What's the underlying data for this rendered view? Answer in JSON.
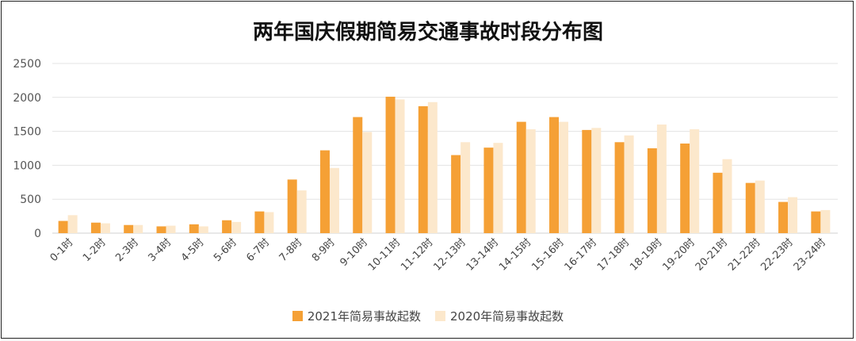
{
  "chart_data": {
    "type": "bar",
    "title": "两年国庆假期简易交通事故时段分布图",
    "categories": [
      "0-1时",
      "1-2时",
      "2-3时",
      "3-4时",
      "4-5时",
      "5-6时",
      "6-7时",
      "7-8时",
      "8-9时",
      "9-10时",
      "10-11时",
      "11-12时",
      "12-13时",
      "13-14时",
      "14-15时",
      "15-16时",
      "16-17时",
      "17-18时",
      "18-19时",
      "19-20时",
      "20-21时",
      "21-22时",
      "22-23时",
      "23-24时"
    ],
    "series": [
      {
        "name": "2021年简易事故起数",
        "color": "#F5A035",
        "values": [
          180,
          155,
          120,
          100,
          130,
          190,
          320,
          790,
          1220,
          1710,
          2010,
          1870,
          1150,
          1260,
          1640,
          1710,
          1520,
          1340,
          1250,
          1320,
          890,
          740,
          460,
          320
        ]
      },
      {
        "name": "2020年简易事故起数",
        "color": "#FCE8CC",
        "values": [
          265,
          145,
          120,
          110,
          100,
          165,
          310,
          630,
          960,
          1490,
          1970,
          1930,
          1340,
          1330,
          1530,
          1640,
          1550,
          1440,
          1600,
          1530,
          1090,
          775,
          530,
          340
        ]
      }
    ],
    "ylim": [
      0,
      2500
    ],
    "yticks": [
      0,
      500,
      1000,
      1500,
      2000,
      2500
    ],
    "grid": true,
    "legend_position": "bottom"
  }
}
